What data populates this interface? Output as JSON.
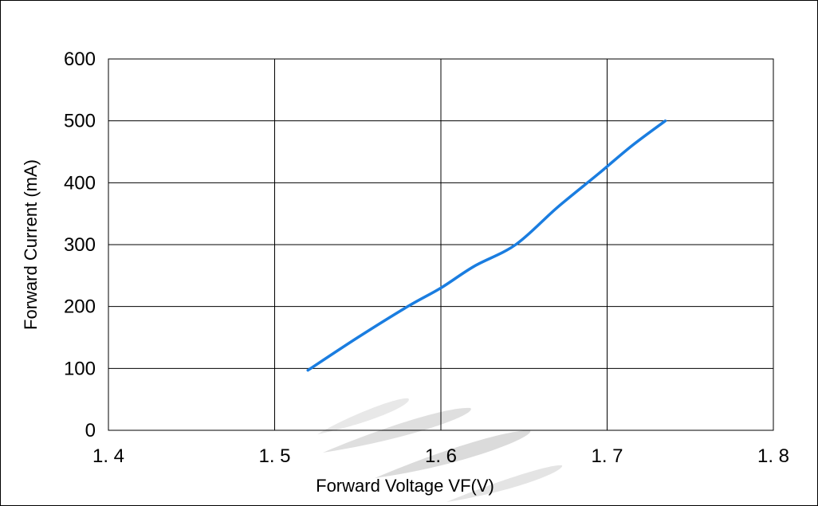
{
  "chart_data": {
    "type": "line",
    "title": "",
    "xlabel": "Forward Voltage  VF(V)",
    "ylabel": "Forward Current (mA)",
    "xlim": [
      1.4,
      1.8
    ],
    "ylim": [
      0,
      600
    ],
    "x_ticks": [
      "1. 4",
      "1. 5",
      "1. 6",
      "1. 7",
      "1. 8"
    ],
    "y_ticks": [
      "0",
      "100",
      "200",
      "300",
      "400",
      "500",
      "600"
    ],
    "x_tick_values": [
      1.4,
      1.5,
      1.6,
      1.7,
      1.8
    ],
    "y_tick_values": [
      0,
      100,
      200,
      300,
      400,
      500,
      600
    ],
    "grid": true,
    "legend": "none",
    "series": [
      {
        "color": "#1a7de0",
        "x": [
          1.52,
          1.55,
          1.58,
          1.6,
          1.62,
          1.645,
          1.67,
          1.695,
          1.715,
          1.735
        ],
        "y": [
          97,
          150,
          200,
          230,
          265,
          300,
          360,
          415,
          460,
          500
        ]
      }
    ],
    "watermark_colors": [
      "#e2e2e2",
      "#d4d4d4"
    ]
  }
}
